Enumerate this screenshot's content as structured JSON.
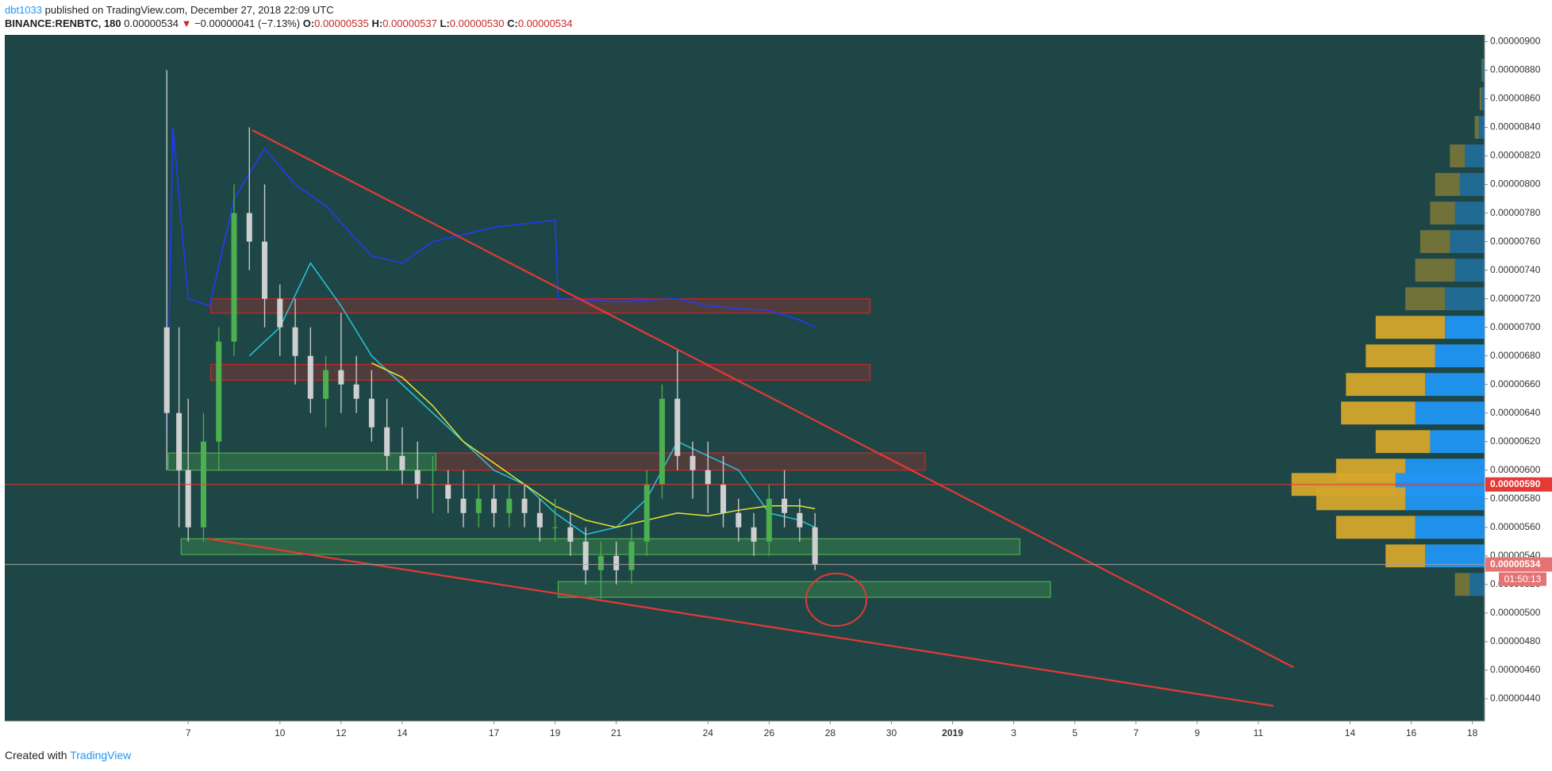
{
  "header": {
    "author": "dbt1033",
    "published": "published on TradingView.com, December 27, 2018 22:09 UTC",
    "symbol": "BINANCE:RENBTC, 180",
    "last": "0.00000534",
    "arrow": "▼",
    "change": "−0.00000041 (−7.13%)",
    "o_label": "O:",
    "o": "0.00000535",
    "h_label": "H:",
    "h": "0.00000537",
    "l_label": "L:",
    "l": "0.00000530",
    "c_label": "C:",
    "c": "0.00000534"
  },
  "footer": {
    "text": "Created with",
    "brand": "TradingView"
  },
  "chart_data": {
    "type": "candlestick",
    "background": "#1f4646",
    "up_color": "#4caf50",
    "down_color": "#cfcfcf",
    "xlim": [
      -6,
      42.4
    ],
    "ylim": [
      4.244e-06,
      9.047e-06
    ],
    "xticks": [
      {
        "value": 0,
        "label": "7"
      },
      {
        "value": 3,
        "label": "10"
      },
      {
        "value": 5,
        "label": "12"
      },
      {
        "value": 7,
        "label": "14"
      },
      {
        "value": 10,
        "label": "17"
      },
      {
        "value": 12,
        "label": "19"
      },
      {
        "value": 14,
        "label": "21"
      },
      {
        "value": 17,
        "label": "24"
      },
      {
        "value": 19,
        "label": "26"
      },
      {
        "value": 21,
        "label": "28"
      },
      {
        "value": 23,
        "label": "30"
      },
      {
        "value": 25,
        "label": "2019"
      },
      {
        "value": 27,
        "label": "3"
      },
      {
        "value": 29,
        "label": "5"
      },
      {
        "value": 31,
        "label": "7"
      },
      {
        "value": 33,
        "label": "9"
      },
      {
        "value": 35,
        "label": "11"
      },
      {
        "value": 38,
        "label": "14"
      },
      {
        "value": 40,
        "label": "16"
      },
      {
        "value": 42,
        "label": "18"
      }
    ],
    "yticks": [
      {
        "value": 4.4e-06,
        "label": "0.00000440"
      },
      {
        "value": 4.6e-06,
        "label": "0.00000460"
      },
      {
        "value": 4.8e-06,
        "label": "0.00000480"
      },
      {
        "value": 5e-06,
        "label": "0.00000500"
      },
      {
        "value": 5.2e-06,
        "label": "0.00000520"
      },
      {
        "value": 5.4e-06,
        "label": "0.00000540"
      },
      {
        "value": 5.6e-06,
        "label": "0.00000560"
      },
      {
        "value": 5.8e-06,
        "label": "0.00000580"
      },
      {
        "value": 6e-06,
        "label": "0.00000600"
      },
      {
        "value": 6.2e-06,
        "label": "0.00000620"
      },
      {
        "value": 6.4e-06,
        "label": "0.00000640"
      },
      {
        "value": 6.6e-06,
        "label": "0.00000660"
      },
      {
        "value": 6.8e-06,
        "label": "0.00000680"
      },
      {
        "value": 7e-06,
        "label": "0.00000700"
      },
      {
        "value": 7.2e-06,
        "label": "0.00000720"
      },
      {
        "value": 7.4e-06,
        "label": "0.00000740"
      },
      {
        "value": 7.6e-06,
        "label": "0.00000760"
      },
      {
        "value": 7.8e-06,
        "label": "0.00000780"
      },
      {
        "value": 8e-06,
        "label": "0.00000800"
      },
      {
        "value": 8.2e-06,
        "label": "0.00000820"
      },
      {
        "value": 8.4e-06,
        "label": "0.00000840"
      },
      {
        "value": 8.6e-06,
        "label": "0.00000860"
      },
      {
        "value": 8.8e-06,
        "label": "0.00000880"
      },
      {
        "value": 9e-06,
        "label": "0.00000900"
      }
    ],
    "candles": {
      "x": [
        -0.7,
        -0.3,
        0,
        0.5,
        1,
        1.5,
        2,
        2.5,
        3,
        3.5,
        4,
        4.5,
        5,
        5.5,
        6,
        6.5,
        7,
        7.5,
        8,
        8.5,
        9,
        9.5,
        10,
        10.5,
        11,
        11.5,
        12,
        12.5,
        13,
        13.5,
        14,
        14.5,
        15,
        15.5,
        16,
        16.5,
        17,
        17.5,
        18,
        18.5,
        19,
        19.5,
        20,
        20.5
      ],
      "open": [
        7e-06,
        6.4e-06,
        6e-06,
        5.6e-06,
        6.2e-06,
        6.9e-06,
        7.8e-06,
        7.6e-06,
        7.2e-06,
        7e-06,
        6.8e-06,
        6.5e-06,
        6.7e-06,
        6.6e-06,
        6.5e-06,
        6.3e-06,
        6.1e-06,
        6e-06,
        5.9e-06,
        5.9e-06,
        5.8e-06,
        5.7e-06,
        5.8e-06,
        5.7e-06,
        5.8e-06,
        5.7e-06,
        5.6e-06,
        5.6e-06,
        5.5e-06,
        5.3e-06,
        5.4e-06,
        5.3e-06,
        5.5e-06,
        5.9e-06,
        6.5e-06,
        6.1e-06,
        6e-06,
        5.9e-06,
        5.7e-06,
        5.6e-06,
        5.5e-06,
        5.8e-06,
        5.7e-06,
        5.6e-06
      ],
      "high": [
        8.8e-06,
        7e-06,
        6.5e-06,
        6.4e-06,
        7e-06,
        8e-06,
        8.4e-06,
        8e-06,
        7.3e-06,
        7.2e-06,
        7e-06,
        6.8e-06,
        7.1e-06,
        6.8e-06,
        6.7e-06,
        6.5e-06,
        6.3e-06,
        6.2e-06,
        6.1e-06,
        6e-06,
        6e-06,
        5.9e-06,
        5.9e-06,
        5.9e-06,
        5.9e-06,
        5.8e-06,
        5.8e-06,
        5.7e-06,
        5.6e-06,
        5.5e-06,
        5.5e-06,
        5.6e-06,
        6e-06,
        6.6e-06,
        6.85e-06,
        6.2e-06,
        6.2e-06,
        6.1e-06,
        5.8e-06,
        5.7e-06,
        5.9e-06,
        6e-06,
        5.8e-06,
        5.7e-06
      ],
      "low": [
        6e-06,
        5.6e-06,
        5.5e-06,
        5.5e-06,
        6e-06,
        6.8e-06,
        7.4e-06,
        7e-06,
        6.8e-06,
        6.6e-06,
        6.4e-06,
        6.3e-06,
        6.4e-06,
        6.4e-06,
        6.2e-06,
        6e-06,
        5.9e-06,
        5.8e-06,
        5.7e-06,
        5.7e-06,
        5.6e-06,
        5.6e-06,
        5.6e-06,
        5.6e-06,
        5.6e-06,
        5.5e-06,
        5.5e-06,
        5.4e-06,
        5.2e-06,
        5.1e-06,
        5.2e-06,
        5.2e-06,
        5.4e-06,
        5.8e-06,
        6e-06,
        5.8e-06,
        5.7e-06,
        5.6e-06,
        5.5e-06,
        5.4e-06,
        5.4e-06,
        5.6e-06,
        5.5e-06,
        5.3e-06
      ],
      "close": [
        6.4e-06,
        6e-06,
        5.6e-06,
        6.2e-06,
        6.9e-06,
        7.8e-06,
        7.6e-06,
        7.2e-06,
        7e-06,
        6.8e-06,
        6.5e-06,
        6.7e-06,
        6.6e-06,
        6.5e-06,
        6.3e-06,
        6.1e-06,
        6e-06,
        5.9e-06,
        5.9e-06,
        5.8e-06,
        5.7e-06,
        5.8e-06,
        5.7e-06,
        5.8e-06,
        5.7e-06,
        5.6e-06,
        5.6e-06,
        5.5e-06,
        5.3e-06,
        5.4e-06,
        5.3e-06,
        5.5e-06,
        5.9e-06,
        6.5e-06,
        6.1e-06,
        6e-06,
        5.9e-06,
        5.7e-06,
        5.6e-06,
        5.5e-06,
        5.8e-06,
        5.7e-06,
        5.6e-06,
        5.34e-06
      ]
    },
    "series": [
      {
        "color": "#1e3cff",
        "x": [
          -0.7,
          -0.5,
          0,
          0.7,
          1.5,
          2.5,
          3.5,
          4.5,
          6,
          7,
          8,
          10,
          12,
          12.1,
          14,
          16,
          17,
          18,
          19,
          20,
          20.5
        ],
        "values": [
          6.2e-06,
          8.4e-06,
          7.2e-06,
          7.15e-06,
          7.9e-06,
          8.25e-06,
          8e-06,
          7.85e-06,
          7.5e-06,
          7.45e-06,
          7.6e-06,
          7.7e-06,
          7.75e-06,
          7.2e-06,
          7.18e-06,
          7.2e-06,
          7.15e-06,
          7.13e-06,
          7.12e-06,
          7.05e-06,
          7e-06
        ]
      },
      {
        "color": "#26c6da",
        "x": [
          2,
          3,
          4,
          5,
          6,
          7,
          8,
          9,
          10,
          11,
          12,
          13,
          14,
          15,
          16,
          17,
          18,
          19,
          20,
          20.5
        ],
        "values": [
          6.8e-06,
          7e-06,
          7.45e-06,
          7.15e-06,
          6.8e-06,
          6.6e-06,
          6.4e-06,
          6.2e-06,
          6e-06,
          5.9e-06,
          5.7e-06,
          5.55e-06,
          5.6e-06,
          5.8e-06,
          6.2e-06,
          6.1e-06,
          6e-06,
          5.7e-06,
          5.65e-06,
          5.6e-06
        ]
      },
      {
        "color": "#e6e62e",
        "x": [
          6,
          7,
          8,
          9,
          10,
          11,
          12,
          13,
          14,
          15,
          16,
          17,
          18,
          19,
          20,
          20.5
        ],
        "values": [
          6.75e-06,
          6.65e-06,
          6.45e-06,
          6.2e-06,
          6.05e-06,
          5.9e-06,
          5.75e-06,
          5.65e-06,
          5.6e-06,
          5.65e-06,
          5.7e-06,
          5.68e-06,
          5.72e-06,
          5.75e-06,
          5.75e-06,
          5.73e-06
        ]
      }
    ],
    "trendlines": [
      {
        "color": "#e53935",
        "x": [
          2.1,
          36.15
        ],
        "y": [
          8.38e-06,
          4.62e-06
        ]
      },
      {
        "color": "#e53935",
        "x": [
          0.65,
          35.5
        ],
        "y": [
          5.52e-06,
          4.35e-06
        ]
      }
    ],
    "zones": [
      {
        "color": "#c62828",
        "x": [
          0.74,
          22.3
        ],
        "y": [
          7.1e-06,
          7.2e-06
        ]
      },
      {
        "color": "#c62828",
        "x": [
          0.74,
          22.3
        ],
        "y": [
          6.63e-06,
          6.74e-06
        ]
      },
      {
        "color": "#c62828",
        "x": [
          8.1,
          24.1
        ],
        "y": [
          6e-06,
          6.12e-06
        ]
      },
      {
        "color": "#4caf50",
        "x": [
          -0.65,
          8.1
        ],
        "y": [
          6e-06,
          6.12e-06
        ]
      },
      {
        "color": "#4caf50",
        "x": [
          -0.23,
          27.2
        ],
        "y": [
          5.41e-06,
          5.52e-06
        ]
      },
      {
        "color": "#4caf50",
        "x": [
          12.1,
          28.2
        ],
        "y": [
          5.11e-06,
          5.22e-06
        ]
      }
    ],
    "price_lines": [
      {
        "value": 5.9e-06,
        "label": "0.00000590",
        "color": "#e53935"
      },
      {
        "value": 5.34e-06,
        "label": "0.00000534",
        "color": "#9e9e9e",
        "badge": "#e57373",
        "countdown": "01:50:13"
      }
    ],
    "volume_profile": {
      "up_color": "#2196f3",
      "down_color": "#d4a72c",
      "value_area": [
        5.3e-06,
        7e-06
      ],
      "prices": [
        8.8e-06,
        8.6e-06,
        8.4e-06,
        8.2e-06,
        8e-06,
        7.8e-06,
        7.6e-06,
        7.4e-06,
        7.2e-06,
        7e-06,
        6.8e-06,
        6.6e-06,
        6.4e-06,
        6.2e-06,
        6e-06,
        5.9e-06,
        5.8e-06,
        5.6e-06,
        5.4e-06,
        5.2e-06
      ],
      "up": [
        2,
        3,
        6,
        20,
        25,
        30,
        35,
        30,
        40,
        40,
        50,
        60,
        70,
        55,
        80,
        90,
        80,
        70,
        60,
        15
      ],
      "down": [
        1,
        2,
        4,
        15,
        25,
        25,
        30,
        40,
        40,
        70,
        70,
        80,
        75,
        55,
        70,
        105,
        90,
        80,
        40,
        15
      ]
    }
  }
}
